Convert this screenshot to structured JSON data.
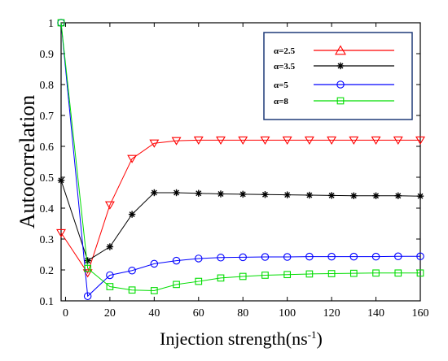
{
  "chart_data": {
    "type": "line",
    "xlabel": "Injection strength(ns",
    "xlabel_sup": "-1",
    "xlabel_end": ")",
    "ylabel": "Autocorrelation",
    "xlim": [
      -2,
      160
    ],
    "ylim": [
      0.1,
      1.0
    ],
    "xticks": [
      0,
      20,
      40,
      60,
      80,
      100,
      120,
      140,
      160
    ],
    "yticks": [
      0.1,
      0.2,
      0.3,
      0.4,
      0.5,
      0.6,
      0.7,
      0.8,
      0.9,
      1
    ],
    "grid": false,
    "legend_position": "top-right",
    "x": [
      -2,
      10,
      20,
      30,
      40,
      50,
      60,
      70,
      80,
      90,
      100,
      110,
      120,
      130,
      140,
      150,
      160
    ],
    "series": [
      {
        "name": "α=2.5",
        "color": "#ff0000",
        "marker": "triangle",
        "values": [
          0.32,
          0.19,
          0.41,
          0.56,
          0.61,
          0.618,
          0.62,
          0.62,
          0.62,
          0.62,
          0.62,
          0.62,
          0.62,
          0.62,
          0.62,
          0.62,
          0.62
        ]
      },
      {
        "name": "α=3.5",
        "color": "#000000",
        "marker": "star",
        "values": [
          0.49,
          0.23,
          0.275,
          0.38,
          0.45,
          0.45,
          0.448,
          0.446,
          0.445,
          0.444,
          0.443,
          0.442,
          0.441,
          0.44,
          0.44,
          0.44,
          0.439
        ]
      },
      {
        "name": "α=5",
        "color": "#0000ff",
        "marker": "circle",
        "values": [
          1.0,
          0.115,
          0.183,
          0.198,
          0.22,
          0.23,
          0.237,
          0.24,
          0.241,
          0.242,
          0.242,
          0.243,
          0.243,
          0.243,
          0.243,
          0.244,
          0.244
        ]
      },
      {
        "name": "α=8",
        "color": "#00dd00",
        "marker": "square",
        "values": [
          1.0,
          0.205,
          0.146,
          0.135,
          0.133,
          0.153,
          0.163,
          0.174,
          0.179,
          0.183,
          0.185,
          0.187,
          0.188,
          0.189,
          0.19,
          0.19,
          0.19
        ]
      }
    ]
  }
}
